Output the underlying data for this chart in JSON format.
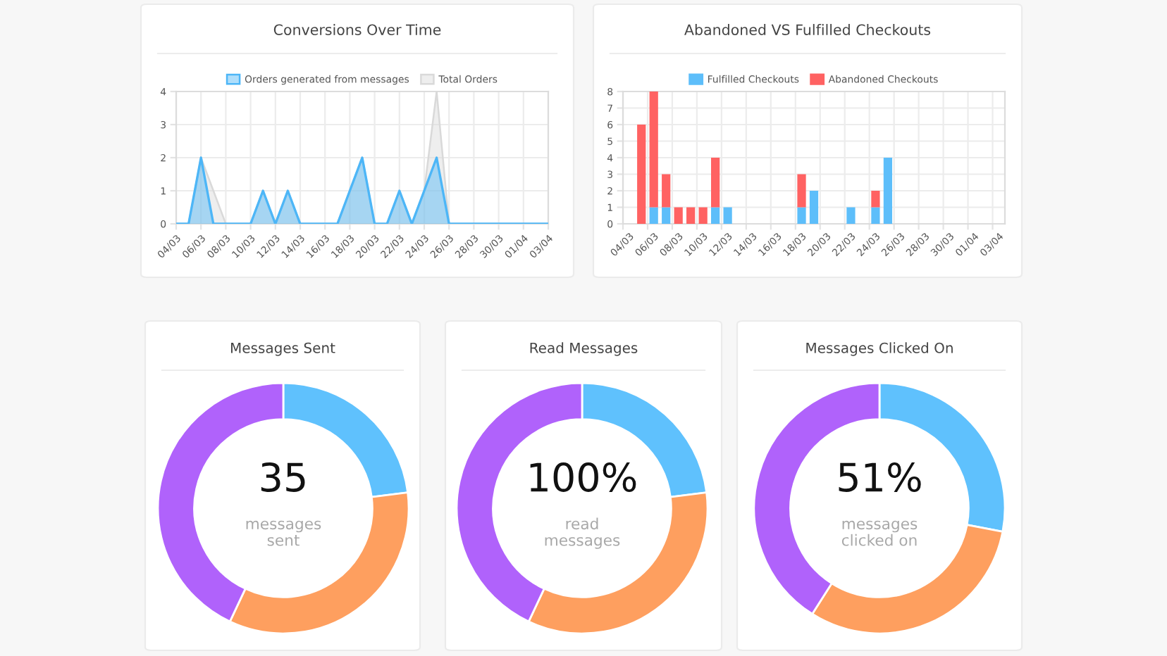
{
  "chart_data": [
    {
      "type": "area",
      "title": "Conversions Over Time",
      "categories": [
        "04/03",
        null,
        "06/03",
        null,
        "08/03",
        null,
        "10/03",
        null,
        "12/03",
        null,
        "14/03",
        null,
        "16/03",
        null,
        "18/03",
        null,
        "20/03",
        null,
        "22/03",
        null,
        "24/03",
        null,
        "26/03",
        null,
        "28/03",
        null,
        "30/03",
        null,
        "01/04",
        null,
        "03/04"
      ],
      "series": [
        {
          "name": "Orders generated from messages",
          "color": "#4db6f7",
          "values": [
            0,
            0,
            2,
            0,
            0,
            0,
            0,
            1,
            0,
            1,
            0,
            0,
            0,
            0,
            1,
            2,
            0,
            0,
            1,
            0,
            1,
            2,
            0,
            0,
            0,
            0,
            0,
            0,
            0,
            0,
            0
          ]
        },
        {
          "name": "Total Orders",
          "color": "#d9d9d9",
          "values": [
            0,
            0,
            2,
            1,
            0,
            0,
            0,
            1,
            0,
            1,
            0,
            0,
            0,
            0,
            1,
            2,
            0,
            0,
            1,
            0,
            1,
            4,
            0,
            0,
            0,
            0,
            0,
            0,
            0,
            0,
            0
          ]
        }
      ],
      "ylim": [
        0,
        4
      ],
      "yticks": [
        0,
        1,
        2,
        3,
        4
      ],
      "grid": true,
      "legend": "top"
    },
    {
      "type": "bar",
      "title": "Abandoned VS Fulfilled Checkouts",
      "categories": [
        "04/03",
        null,
        "06/03",
        null,
        "08/03",
        null,
        "10/03",
        null,
        "12/03",
        null,
        "14/03",
        null,
        "16/03",
        null,
        "18/03",
        null,
        "20/03",
        null,
        "22/03",
        null,
        "24/03",
        null,
        "26/03",
        null,
        "28/03",
        null,
        "30/03",
        null,
        "01/04",
        null,
        "03/04"
      ],
      "series": [
        {
          "name": "Fulfilled Checkouts",
          "color": "#5dbefa",
          "values": [
            0,
            0,
            1,
            1,
            0,
            0,
            0,
            1,
            1,
            0,
            0,
            0,
            0,
            0,
            1,
            2,
            0,
            0,
            1,
            0,
            1,
            4,
            0,
            0,
            0,
            0,
            0,
            0,
            0,
            0,
            0
          ]
        },
        {
          "name": "Abandoned Checkouts",
          "color": "#ff6262",
          "values": [
            0,
            6,
            7,
            2,
            1,
            1,
            1,
            3,
            0,
            0,
            0,
            0,
            0,
            0,
            2,
            0,
            0,
            0,
            0,
            0,
            1,
            0,
            0,
            0,
            0,
            0,
            0,
            0,
            0,
            0,
            0
          ]
        }
      ],
      "stacked": true,
      "ylim": [
        0,
        8
      ],
      "yticks": [
        0,
        1,
        2,
        3,
        4,
        5,
        6,
        7,
        8
      ],
      "grid": true,
      "legend": "top"
    },
    {
      "type": "donut",
      "title": "Messages Sent",
      "categories": [
        null,
        null,
        null
      ],
      "values": [
        23,
        34,
        43
      ],
      "colors": [
        "#5fc1fd",
        "#fe9f5f",
        "#b062fb"
      ],
      "annotations": [
        "35",
        "messages\nsent"
      ]
    },
    {
      "type": "donut",
      "title": "Read Messages",
      "categories": [
        null,
        null,
        null
      ],
      "values": [
        23,
        34,
        43
      ],
      "colors": [
        "#5fc1fd",
        "#fe9f5f",
        "#b062fb"
      ],
      "annotations": [
        "100%",
        "read\nmessages"
      ]
    },
    {
      "type": "donut",
      "title": "Messages Clicked On",
      "categories": [
        null,
        null,
        null
      ],
      "values": [
        28,
        31,
        41
      ],
      "colors": [
        "#5fc1fd",
        "#fe9f5f",
        "#b062fb"
      ],
      "annotations": [
        "51%",
        "messages\nclicked on"
      ]
    }
  ]
}
